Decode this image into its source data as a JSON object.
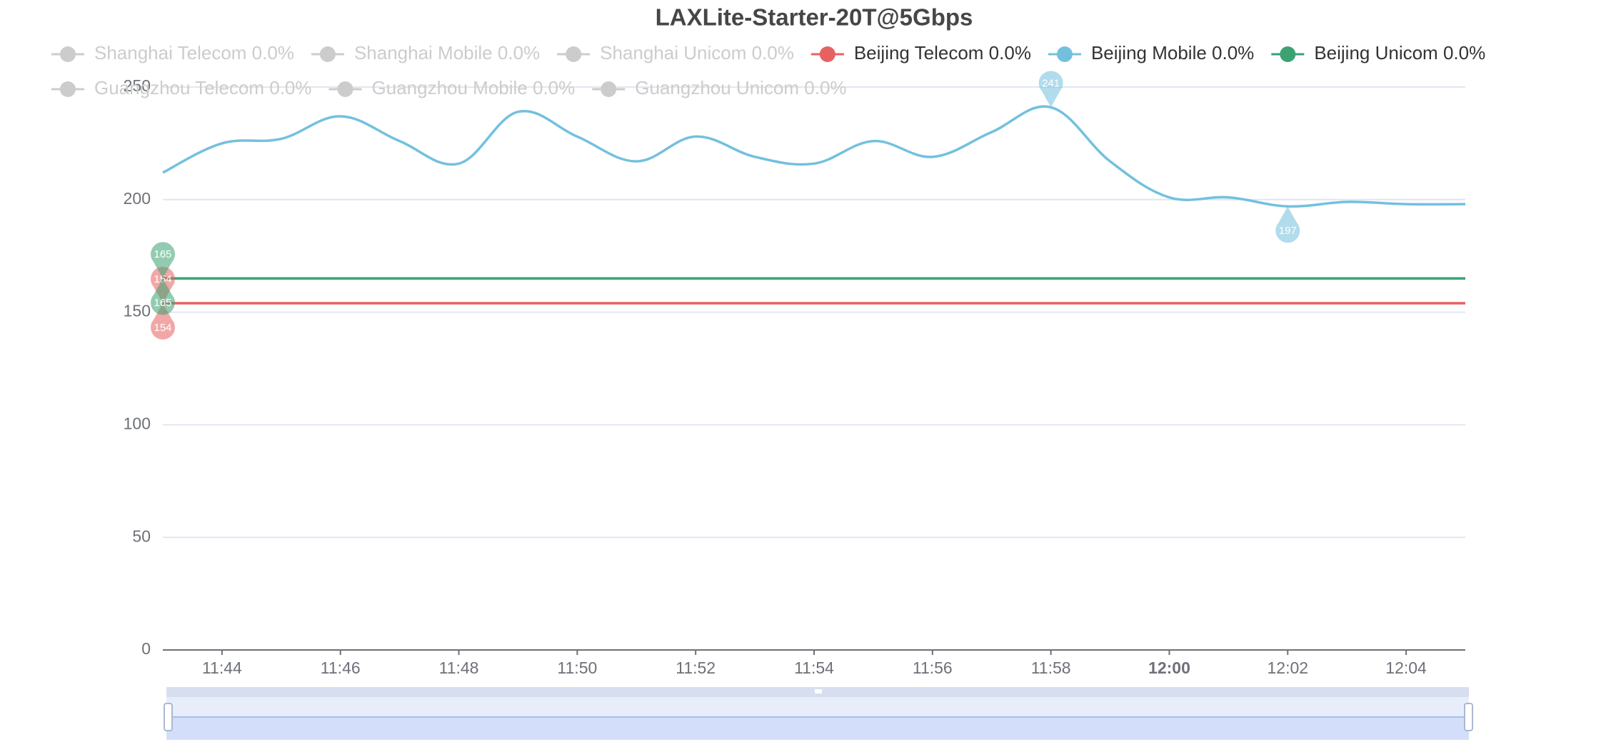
{
  "chart_data": {
    "type": "line",
    "title": "LAXLite-Starter-20T@5Gbps",
    "x": [
      "11:43",
      "11:44",
      "11:45",
      "11:46",
      "11:47",
      "11:48",
      "11:49",
      "11:50",
      "11:51",
      "11:52",
      "11:53",
      "11:54",
      "11:55",
      "11:56",
      "11:57",
      "11:58",
      "11:59",
      "12:00",
      "12:01",
      "12:02",
      "12:03",
      "12:04",
      "12:05"
    ],
    "xticks": [
      "11:44",
      "11:46",
      "11:48",
      "11:50",
      "11:52",
      "11:54",
      "11:56",
      "11:58",
      "12:00",
      "12:02",
      "12:04"
    ],
    "ylim": [
      0,
      250
    ],
    "yticks": [
      0,
      50,
      100,
      150,
      200,
      250
    ],
    "grid": true,
    "smooth": true,
    "series": [
      {
        "name": "Shanghai Telecom 0.0%",
        "color": "#cccccc",
        "hidden": true
      },
      {
        "name": "Shanghai Mobile 0.0%",
        "color": "#cccccc",
        "hidden": true
      },
      {
        "name": "Shanghai Unicom 0.0%",
        "color": "#cccccc",
        "hidden": true
      },
      {
        "name": "Beijing Telecom 0.0%",
        "color": "#e86161",
        "values": [
          154,
          154,
          154,
          154,
          154,
          154,
          154,
          154,
          154,
          154,
          154,
          154,
          154,
          154,
          154,
          154,
          154,
          154,
          154,
          154,
          154,
          154,
          154
        ]
      },
      {
        "name": "Beijing Mobile 0.0%",
        "color": "#73c0de",
        "values": [
          212,
          225,
          227,
          237,
          226,
          216,
          239,
          228,
          217,
          228,
          219,
          216,
          226,
          219,
          230,
          241,
          217,
          201,
          201,
          197,
          199,
          198,
          198
        ]
      },
      {
        "name": "Beijing Unicom 0.0%",
        "color": "#3ba272",
        "values": [
          165,
          165,
          165,
          165,
          165,
          165,
          165,
          165,
          165,
          165,
          165,
          165,
          165,
          165,
          165,
          165,
          165,
          165,
          165,
          165,
          165,
          165,
          165
        ]
      },
      {
        "name": "Guangzhou Telecom 0.0%",
        "color": "#cccccc",
        "hidden": true
      },
      {
        "name": "Guangzhou Mobile 0.0%",
        "color": "#cccccc",
        "hidden": true
      },
      {
        "name": "Guangzhou Unicom 0.0%",
        "color": "#cccccc",
        "hidden": true
      }
    ]
  }
}
